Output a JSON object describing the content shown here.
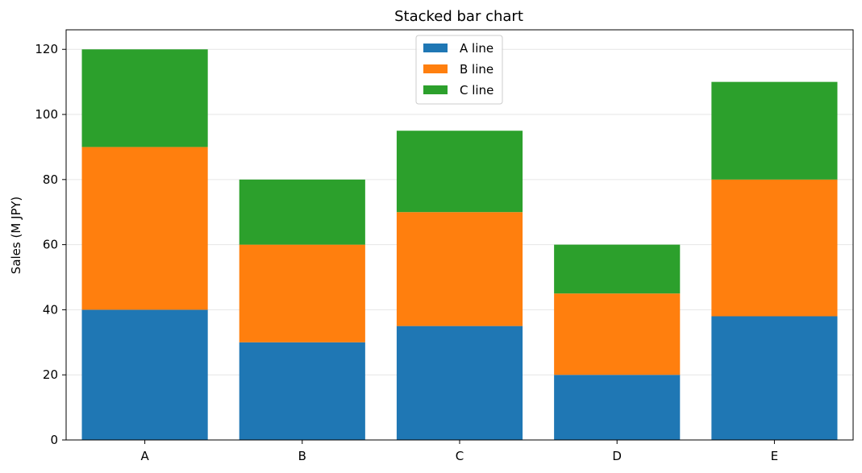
{
  "chart_data": {
    "type": "bar",
    "stacked": true,
    "title": "Stacked bar chart",
    "xlabel": "",
    "ylabel": "Sales (M JPY)",
    "categories": [
      "A",
      "B",
      "C",
      "D",
      "E"
    ],
    "series": [
      {
        "name": "A line",
        "color": "#1f77b4",
        "values": [
          40,
          30,
          35,
          20,
          38
        ]
      },
      {
        "name": "B line",
        "color": "#ff7f0e",
        "values": [
          50,
          30,
          35,
          25,
          42
        ]
      },
      {
        "name": "C line",
        "color": "#2ca02c",
        "values": [
          30,
          20,
          25,
          15,
          30
        ]
      }
    ],
    "ylim": [
      0,
      126
    ],
    "yticks": [
      0,
      20,
      40,
      60,
      80,
      100,
      120
    ],
    "grid": "horizontal",
    "legend": "top-center"
  }
}
